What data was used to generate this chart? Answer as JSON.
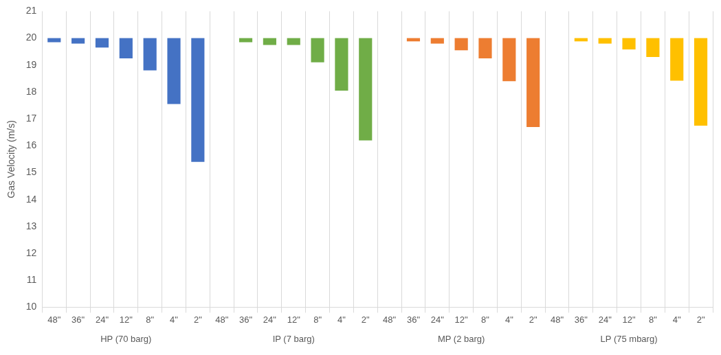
{
  "chart_data": {
    "type": "bar",
    "ylabel": "Gas Velocity (m/s)",
    "categories": [
      "48\"",
      "36\"",
      "24\"",
      "12\"",
      "8\"",
      "4\"",
      "2\"",
      "48\"",
      "36\"",
      "24\"",
      "12\"",
      "8\"",
      "4\"",
      "2\"",
      "48\"",
      "36\"",
      "24\"",
      "12\"",
      "8\"",
      "4\"",
      "2\"",
      "48\"",
      "36\"",
      "24\"",
      "12\"",
      "8\"",
      "4\"",
      "2\""
    ],
    "series": [
      {
        "color": "#4472c4",
        "base": [
          20,
          20,
          20,
          20,
          20,
          20,
          20,
          null,
          null,
          null,
          null,
          null,
          null,
          null,
          null,
          null,
          null,
          null,
          null,
          null,
          null,
          null,
          null,
          null,
          null,
          null,
          null,
          null
        ],
        "values": [
          -0.15,
          -0.2,
          -0.35,
          -0.75,
          -1.2,
          -2.45,
          -4.6,
          null,
          null,
          null,
          null,
          null,
          null,
          null,
          null,
          null,
          null,
          null,
          null,
          null,
          null,
          null,
          null,
          null,
          null,
          null,
          null,
          null
        ]
      },
      {
        "color": "#70ad47",
        "base": [
          null,
          null,
          null,
          null,
          null,
          null,
          null,
          null,
          20,
          20,
          20,
          20,
          20,
          20,
          null,
          null,
          null,
          null,
          null,
          null,
          null,
          null,
          null,
          null,
          null,
          null,
          null,
          null
        ],
        "values": [
          null,
          null,
          null,
          null,
          null,
          null,
          null,
          null,
          -0.15,
          -0.25,
          -0.25,
          -0.9,
          -1.95,
          -3.8,
          null,
          null,
          null,
          null,
          null,
          null,
          null,
          null,
          null,
          null,
          null,
          null,
          null,
          null
        ]
      },
      {
        "color": "#ed7d31",
        "base": [
          null,
          null,
          null,
          null,
          null,
          null,
          null,
          null,
          null,
          null,
          null,
          null,
          null,
          null,
          null,
          20,
          20,
          20,
          20,
          20,
          20,
          null,
          null,
          null,
          null,
          null,
          null,
          null
        ],
        "values": [
          null,
          null,
          null,
          null,
          null,
          null,
          null,
          null,
          null,
          null,
          null,
          null,
          null,
          null,
          null,
          -0.12,
          -0.2,
          -0.45,
          -0.75,
          -1.6,
          -3.3,
          null,
          null,
          null,
          null,
          null,
          null,
          null
        ]
      },
      {
        "color": "#ffc000",
        "base": [
          null,
          null,
          null,
          null,
          null,
          null,
          null,
          null,
          null,
          null,
          null,
          null,
          null,
          null,
          null,
          null,
          null,
          null,
          null,
          null,
          null,
          null,
          20,
          20,
          20,
          20,
          20,
          20
        ],
        "values": [
          null,
          null,
          null,
          null,
          null,
          null,
          null,
          null,
          null,
          null,
          null,
          null,
          null,
          null,
          null,
          null,
          null,
          null,
          null,
          null,
          null,
          null,
          -0.12,
          -0.2,
          -0.42,
          -0.7,
          -1.58,
          -3.25
        ]
      }
    ],
    "annotations": [
      "HP (70 barg)",
      "IP (7 barg)",
      "MP (2 barg)",
      "LP (75 mbarg)"
    ],
    "ylim": [
      10,
      21
    ],
    "yticks": [
      10,
      11,
      12,
      13,
      14,
      15,
      16,
      17,
      18,
      19,
      20,
      21
    ],
    "grid": "x",
    "legend": false
  }
}
